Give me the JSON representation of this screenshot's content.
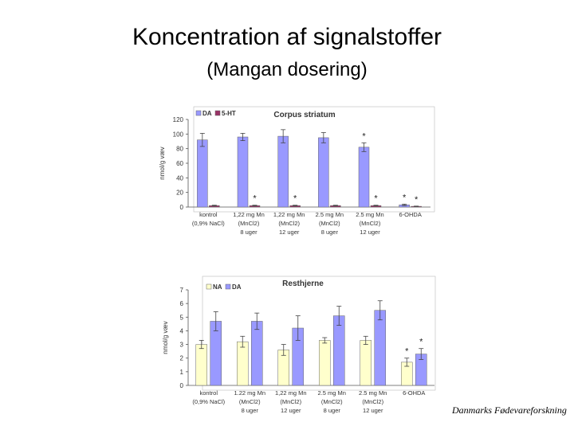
{
  "slide": {
    "title": "Koncentration af signalstoffer",
    "subtitle": "(Mangan dosering)",
    "credit": "Danmarks Fødevareforskning"
  },
  "chart_data": [
    {
      "type": "bar",
      "title": "Corpus striatum",
      "ylabel": "nmol/g væv",
      "ylim": [
        0,
        120
      ],
      "yticks": [
        0,
        20,
        40,
        60,
        80,
        100,
        120
      ],
      "categories": [
        [
          "kontrol",
          "(0,9% NaCl)"
        ],
        [
          "1,22 mg Mn",
          "(MnCl2)",
          "8 uger"
        ],
        [
          "1,22 mg Mn",
          "(MnCl2)",
          "12 uger"
        ],
        [
          "2.5 mg Mn",
          "(MnCl2)",
          "8 uger"
        ],
        [
          "2.5 mg Mn",
          "(MnCl2)",
          "12 uger"
        ],
        [
          "6-OHDA"
        ]
      ],
      "legend": [
        "DA",
        "5-HT"
      ],
      "legend_position": "top-left",
      "series": [
        {
          "name": "DA",
          "color": "#9999ff",
          "values": [
            92,
            96,
            97,
            95,
            82,
            3
          ],
          "errors": [
            9,
            5,
            9,
            7,
            6,
            1
          ]
        },
        {
          "name": "5-HT",
          "color": "#993366",
          "values": [
            2,
            2,
            2,
            2,
            2,
            1
          ],
          "errors": [
            0.5,
            0.5,
            0.5,
            0.5,
            0.5,
            0.3
          ]
        }
      ],
      "annotations": [
        {
          "text": "*",
          "category": 4,
          "series": 0
        },
        {
          "text": "*",
          "category": 1,
          "series": 1
        },
        {
          "text": "*",
          "category": 2,
          "series": 1
        },
        {
          "text": "*",
          "category": 4,
          "series": 1
        },
        {
          "text": "*",
          "category": 5,
          "series": 0
        },
        {
          "text": "*",
          "category": 5,
          "series": 1
        }
      ]
    },
    {
      "type": "bar",
      "title": "Resthjerne",
      "ylabel": "nmol/g væv",
      "ylim": [
        0,
        7
      ],
      "yticks": [
        0,
        1,
        2,
        3,
        4,
        5,
        6,
        7
      ],
      "categories": [
        [
          "kontrol",
          "(0,9% NaCl)"
        ],
        [
          "1.22 mg Mn",
          "(MnCl2)",
          "8 uger"
        ],
        [
          "1,22 mg Mn",
          "(MnCl2)",
          "12 uger"
        ],
        [
          "2.5 mg Mn",
          "(MnCl2)",
          "8 uger"
        ],
        [
          "2.5 mg Mn",
          "(MnCl2)",
          "12 uger"
        ],
        [
          "6-OHDA"
        ]
      ],
      "legend": [
        "NA",
        "DA"
      ],
      "legend_position": "top-left",
      "series": [
        {
          "name": "NA",
          "color": "#ffffcc",
          "values": [
            3.0,
            3.2,
            2.6,
            3.3,
            3.3,
            1.7
          ],
          "errors": [
            0.3,
            0.4,
            0.4,
            0.2,
            0.3,
            0.3
          ]
        },
        {
          "name": "DA",
          "color": "#9999ff",
          "values": [
            4.7,
            4.7,
            4.2,
            5.1,
            5.5,
            2.3
          ],
          "errors": [
            0.7,
            0.6,
            0.9,
            0.7,
            0.7,
            0.4
          ]
        }
      ],
      "annotations": [
        {
          "text": "*",
          "category": 5,
          "series": 0
        },
        {
          "text": "*",
          "category": 5,
          "series": 1
        }
      ]
    }
  ]
}
